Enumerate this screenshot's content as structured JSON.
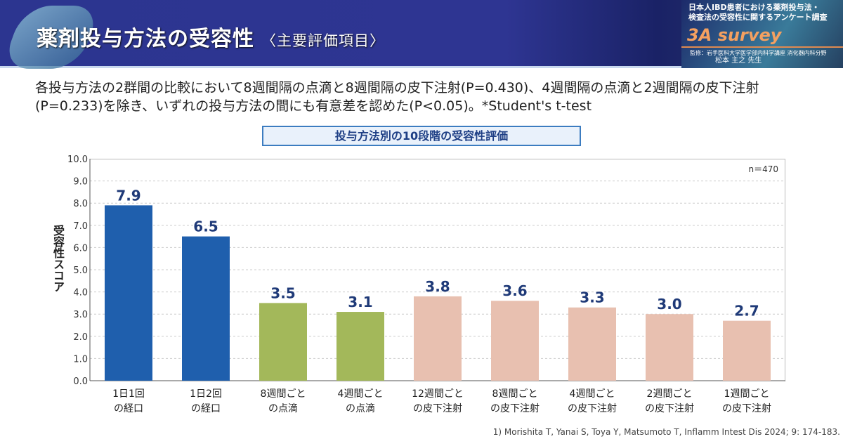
{
  "header": {
    "title": "薬剤投与方法の受容性",
    "subtitle": "〈主要評価項目〉"
  },
  "brand": {
    "line1": "日本人IBD患者における薬剤投与法・",
    "line2": "検査法の受容性に関するアンケート調査",
    "survey": "3A survey",
    "supervisor": "監修：岩手医科大学医学部内科学講座 消化器内科分野",
    "doctor": "松本 主之 先生"
  },
  "note": "各投与方法の2群間の比較において8週間隔の点滴と8週間隔の皮下注射(P=0.430)、4週間隔の点滴と2週間隔の皮下注射(P=0.233)を除き、いずれの投与方法の間にも有意差を認めた(P<0.05)。*Student's t-test",
  "reference": "1) Morishita T, Yanai S, Toya Y, Matsumoto T, Inflamm Intest Dis 2024; 9: 174-183.",
  "colors": {
    "oral": "#1f5fad",
    "infusion": "#a3b85a",
    "subcutaneous": "#e8c0b0",
    "label": "#1f3a78"
  },
  "chart_data": {
    "type": "bar",
    "title": "投与方法別の10段階の受容性評価",
    "ylabel": "受容性スコア",
    "n_label": "n＝470",
    "ylim": [
      0,
      10
    ],
    "yticks": [
      "0.0",
      "1.0",
      "2.0",
      "3.0",
      "4.0",
      "5.0",
      "6.0",
      "7.0",
      "8.0",
      "9.0",
      "10.0"
    ],
    "grid": true,
    "categories": [
      [
        "1日1回",
        "の経口"
      ],
      [
        "1日2回",
        "の経口"
      ],
      [
        "8週間ごと",
        "の点滴"
      ],
      [
        "4週間ごと",
        "の点滴"
      ],
      [
        "12週間ごと",
        "の皮下注射"
      ],
      [
        "8週間ごと",
        "の皮下注射"
      ],
      [
        "4週間ごと",
        "の皮下注射"
      ],
      [
        "2週間ごと",
        "の皮下注射"
      ],
      [
        "1週間ごと",
        "の皮下注射"
      ]
    ],
    "groups": [
      "oral",
      "oral",
      "infusion",
      "infusion",
      "subcutaneous",
      "subcutaneous",
      "subcutaneous",
      "subcutaneous",
      "subcutaneous"
    ],
    "values": [
      7.9,
      6.5,
      3.5,
      3.1,
      3.8,
      3.6,
      3.3,
      3.0,
      2.7
    ],
    "value_labels": [
      "7.9",
      "6.5",
      "3.5",
      "3.1",
      "3.8",
      "3.6",
      "3.3",
      "3.0",
      "2.7"
    ]
  }
}
